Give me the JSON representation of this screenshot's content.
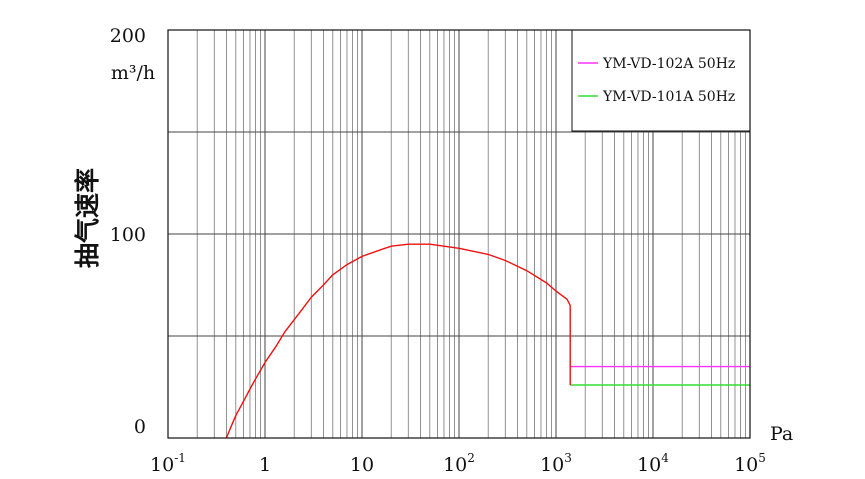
{
  "chart_data": {
    "type": "line",
    "ylabel": "抽气速率",
    "yunit": "m³/h",
    "xunit": "Pa",
    "x_scale": "log",
    "xlim": [
      0.1,
      100000
    ],
    "ylim": [
      0,
      200
    ],
    "grid": true,
    "legend_position": "top-right",
    "y_ticks": [
      {
        "value": 0,
        "label": "0"
      },
      {
        "value": 100,
        "label": "100"
      },
      {
        "value": 200,
        "label": "200"
      }
    ],
    "x_ticks": [
      {
        "value": 0.1,
        "base": "10",
        "exp": "-1"
      },
      {
        "value": 1,
        "base": "1",
        "exp": ""
      },
      {
        "value": 10,
        "base": "10",
        "exp": ""
      },
      {
        "value": 100,
        "base": "10",
        "exp": "2"
      },
      {
        "value": 1000,
        "base": "10",
        "exp": "3"
      },
      {
        "value": 10000,
        "base": "10",
        "exp": "4"
      },
      {
        "value": 100000,
        "base": "10",
        "exp": "5"
      }
    ],
    "series": [
      {
        "name": "YM-VD-102A 50Hz",
        "color": "#ff33ff",
        "points": [
          [
            1400,
            35
          ],
          [
            100000,
            35
          ]
        ]
      },
      {
        "name": "YM-VD-101A 50Hz",
        "color": "#33dd33",
        "points": [
          [
            1400,
            26
          ],
          [
            100000,
            26
          ]
        ]
      },
      {
        "name": "",
        "color": "#ee1111",
        "points": [
          [
            0.4,
            0
          ],
          [
            0.45,
            6
          ],
          [
            0.5,
            11
          ],
          [
            0.6,
            18
          ],
          [
            0.7,
            24
          ],
          [
            0.8,
            29
          ],
          [
            1,
            37
          ],
          [
            1.3,
            45
          ],
          [
            1.6,
            52
          ],
          [
            2,
            58
          ],
          [
            2.5,
            64
          ],
          [
            3,
            69
          ],
          [
            4,
            75
          ],
          [
            5,
            80
          ],
          [
            7,
            85
          ],
          [
            10,
            89
          ],
          [
            15,
            92
          ],
          [
            20,
            94
          ],
          [
            30,
            95
          ],
          [
            50,
            95
          ],
          [
            70,
            94
          ],
          [
            100,
            93
          ],
          [
            200,
            90
          ],
          [
            300,
            87
          ],
          [
            500,
            82
          ],
          [
            800,
            76
          ],
          [
            1000,
            72
          ],
          [
            1300,
            68
          ],
          [
            1400,
            65
          ],
          [
            1400,
            26
          ]
        ]
      }
    ]
  }
}
